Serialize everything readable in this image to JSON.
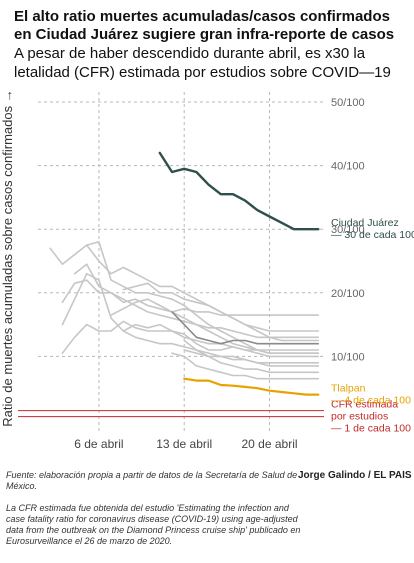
{
  "header": {
    "title": "El alto ratio muertes acumuladas/casos confirmados en Ciudad Juárez sugiere gran infra-reporte de casos",
    "subtitle": "A pesar de haber descendido durante abril, es x30 la letalidad (CFR) estimada por estudios sobre COVID—19"
  },
  "footer": {
    "source": "Fuente: elaboración propia a partir de datos de la Secretaría de Salud de México.",
    "author": "Jorge Galindo / EL PAIS",
    "note": "La CFR estimada fue obtenida del estudio 'Estimating the infection and case fatality ratio for coronavirus disease (COVID-19) using age-adjusted data from the outbreak on the Diamond Princess cruise ship' publicado en Eurosurveillance el 26 de marzo de 2020."
  },
  "colors": {
    "juarez": "#2f4f4c",
    "tlalpan": "#e8a200",
    "cfr": "#c22b2b",
    "others": "#c6c6c6",
    "others_dark": "#8a8a8a",
    "grid": "#b8b8b8"
  },
  "chart_data": {
    "type": "line",
    "ylabel": "Ratio de muertes acumuladas sobre casos confirmados →",
    "xlabel": "",
    "x_ticks": [
      {
        "day": 6,
        "label": "6 de abril"
      },
      {
        "day": 13,
        "label": "13 de abril"
      },
      {
        "day": 20,
        "label": "20 de abril"
      }
    ],
    "y_ticks": [
      {
        "value": 10,
        "label": "10/100"
      },
      {
        "value": 20,
        "label": "20/100"
      },
      {
        "value": 30,
        "label": "30/100"
      },
      {
        "value": 40,
        "label": "40/100"
      },
      {
        "value": 50,
        "label": "50/100"
      }
    ],
    "xlim": [
      1,
      24.8
    ],
    "ylim": [
      0,
      50
    ],
    "grid": true,
    "x": [
      2,
      3,
      4,
      5,
      6,
      7,
      8,
      9,
      10,
      11,
      12,
      13,
      14,
      15,
      16,
      17,
      18,
      19,
      20,
      21,
      22,
      23,
      24
    ],
    "series": [
      {
        "name": "Ciudad Juárez",
        "label_lines": [
          "Ciudad Juárez",
          "— 30 de cada 100"
        ],
        "highlight": "juarez",
        "values": [
          null,
          null,
          null,
          null,
          null,
          null,
          null,
          null,
          null,
          42,
          39,
          39.5,
          39,
          37,
          35.5,
          35.5,
          34.5,
          33,
          32,
          31,
          30,
          30,
          30
        ]
      },
      {
        "name": "Tlalpan",
        "label_lines": [
          "Tlalpan",
          "— 4 de cada 100"
        ],
        "highlight": "tlalpan",
        "values": [
          null,
          null,
          null,
          null,
          null,
          null,
          null,
          null,
          null,
          null,
          null,
          6.5,
          6.2,
          6.2,
          5.5,
          5.4,
          5.2,
          5,
          4.6,
          4.4,
          4.2,
          4,
          4
        ]
      },
      {
        "name": "",
        "highlight": "other",
        "values": [
          null,
          null,
          null,
          null,
          null,
          16.5,
          17.5,
          18.5,
          19,
          18,
          17,
          17.5,
          17,
          17,
          16.5,
          16.5,
          16.5,
          16.5,
          16.5,
          16.5,
          16.5,
          16.5,
          16.5
        ]
      },
      {
        "name": "",
        "highlight": "other",
        "values": [
          null,
          null,
          null,
          null,
          null,
          null,
          20.5,
          21,
          21.5,
          20,
          20,
          19,
          18.5,
          18,
          17,
          16,
          15,
          14.5,
          14,
          14,
          14,
          14,
          14
        ]
      },
      {
        "name": "",
        "highlight": "other",
        "values": [
          null,
          null,
          23,
          24.5,
          21,
          20,
          19,
          18,
          17,
          16.5,
          16,
          15.5,
          15,
          14.5,
          14.5,
          14,
          13.5,
          13,
          13,
          13,
          13,
          13,
          13
        ]
      },
      {
        "name": "",
        "highlight": "dark",
        "values": [
          null,
          null,
          null,
          null,
          null,
          null,
          null,
          null,
          null,
          null,
          17,
          15,
          13,
          12.5,
          12,
          12.5,
          12.5,
          12,
          12,
          12,
          12,
          12,
          12
        ]
      },
      {
        "name": "",
        "highlight": "other",
        "values": [
          null,
          null,
          null,
          null,
          null,
          null,
          14,
          15,
          14.5,
          15,
          14,
          13.5,
          12,
          11,
          11,
          11.5,
          11,
          11,
          10.5,
          10.5,
          10.5,
          10.5,
          10.5
        ]
      },
      {
        "name": "",
        "highlight": "other",
        "values": [
          null,
          null,
          null,
          null,
          null,
          null,
          null,
          null,
          null,
          null,
          null,
          11,
          10.5,
          10,
          10,
          9.5,
          9.5,
          9,
          9,
          9,
          9,
          9,
          9
        ]
      },
      {
        "name": "",
        "highlight": "other",
        "values": [
          null,
          null,
          null,
          null,
          null,
          null,
          null,
          null,
          null,
          null,
          null,
          12.5,
          11,
          10,
          9,
          8.5,
          8,
          8,
          7.5,
          7.5,
          7.5,
          7.5,
          7.5
        ]
      },
      {
        "name": "",
        "highlight": "other",
        "values": [
          null,
          null,
          null,
          null,
          null,
          null,
          null,
          null,
          null,
          null,
          10.5,
          10,
          8.5,
          8,
          7.5,
          7,
          7,
          6.5,
          6.5,
          6.5,
          6.5,
          6.5,
          6.5
        ]
      },
      {
        "name": "",
        "highlight": "other",
        "values": [
          27,
          24.5,
          26,
          27.5,
          25,
          23,
          24,
          23,
          22,
          21,
          21,
          20,
          19,
          18,
          17,
          16,
          15,
          14,
          13,
          12.5,
          12.5,
          12.5,
          12.5
        ]
      },
      {
        "name": "",
        "highlight": "other",
        "values": [
          null,
          18.5,
          21.5,
          22,
          20,
          20,
          18.5,
          19,
          18,
          17.5,
          17,
          16,
          15,
          14,
          13,
          12,
          11.5,
          11,
          11,
          11,
          11,
          11,
          11
        ]
      },
      {
        "name": "",
        "highlight": "other",
        "values": [
          null,
          10.5,
          13,
          15,
          14,
          14,
          15.5,
          14.5,
          14,
          14,
          14,
          13,
          12.5,
          12,
          12,
          11.5,
          11,
          10.5,
          10,
          10,
          10,
          10,
          10
        ]
      },
      {
        "name": "",
        "highlight": "other",
        "values": [
          null,
          15,
          19,
          23,
          22,
          16,
          14,
          13,
          12.5,
          12,
          12,
          11.5,
          11,
          10.5,
          10,
          10,
          9.5,
          9,
          8.5,
          8.5,
          8.5,
          8.5,
          8.5
        ]
      },
      {
        "name": "",
        "highlight": "other",
        "values": [
          null,
          null,
          null,
          27.5,
          28,
          22,
          21,
          20,
          20,
          19.5,
          19,
          18,
          16.5,
          15,
          14,
          13,
          12,
          11,
          10.5,
          10.5,
          10.5,
          10.5,
          10.5
        ]
      }
    ],
    "reference_lines": [
      {
        "value": 1,
        "label_lines": [
          "CFR estimada",
          "por estudios",
          "— 1 de cada 100"
        ],
        "highlight": "cfr"
      }
    ]
  }
}
